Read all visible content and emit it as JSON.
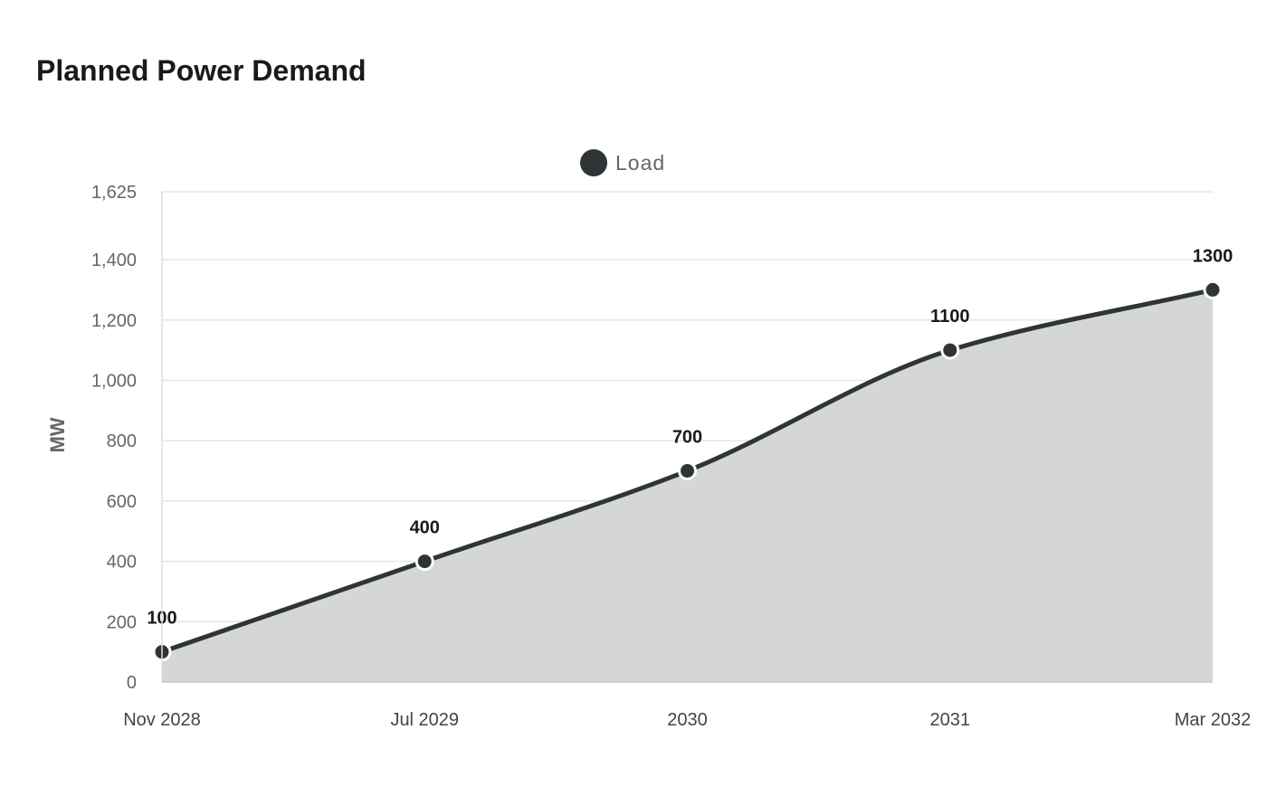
{
  "chart_data": {
    "type": "area",
    "title": "Planned Power Demand",
    "xlabel": "",
    "ylabel": "MW",
    "categories": [
      "Nov 2028",
      "Jul 2029",
      "2030",
      "2031",
      "Mar 2032"
    ],
    "series": [
      {
        "name": "Load",
        "values": [
          100,
          400,
          700,
          1100,
          1300
        ]
      }
    ],
    "y_ticks": [
      "0",
      "200",
      "400",
      "600",
      "800",
      "1,000",
      "1,200",
      "1,400",
      "1,625"
    ],
    "y_tick_values": [
      0,
      200,
      400,
      600,
      800,
      1000,
      1200,
      1400,
      1625
    ],
    "ylim": [
      0,
      1625
    ],
    "grid": true,
    "legend_position": "top-center",
    "data_labels": true,
    "line_color": "#2f3536",
    "fill_color": "#d5d7d6",
    "grid_color": "#e6e6e6"
  }
}
